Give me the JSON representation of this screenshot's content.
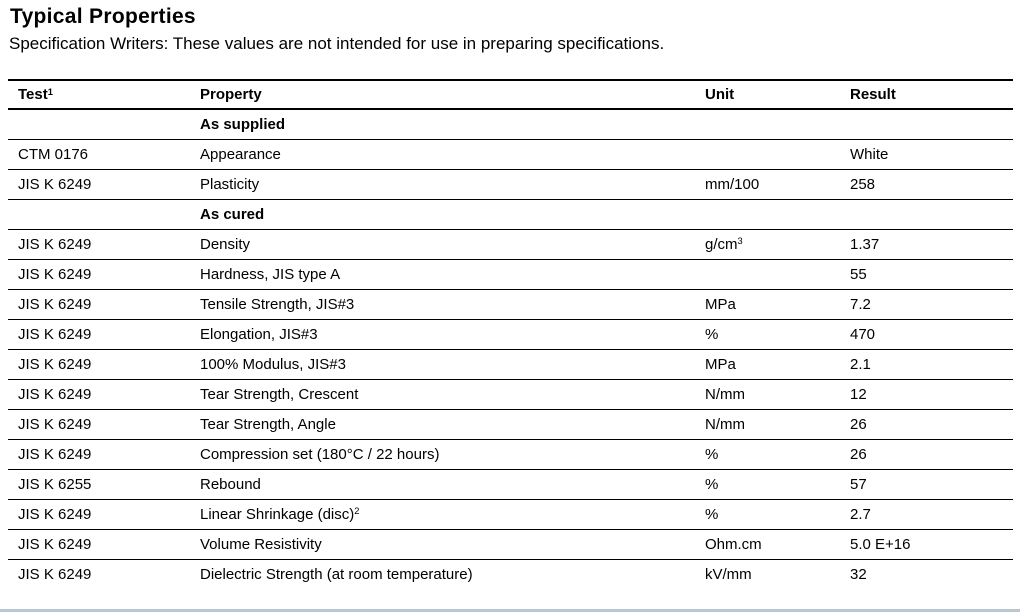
{
  "page": {
    "title": "Typical Properties",
    "subtitle": "Specification Writers: These values are not intended for use in preparing specifications."
  },
  "table": {
    "columns": [
      {
        "key": "test",
        "label": "Test",
        "sup": "1"
      },
      {
        "key": "property",
        "label": "Property",
        "sup": ""
      },
      {
        "key": "unit",
        "label": "Unit",
        "sup": ""
      },
      {
        "key": "result",
        "label": "Result",
        "sup": ""
      }
    ],
    "rows": [
      {
        "type": "section",
        "test": "",
        "property": "As supplied",
        "unit": "",
        "result": ""
      },
      {
        "type": "data",
        "test": "CTM 0176",
        "property": "Appearance",
        "unit": "",
        "result": "White"
      },
      {
        "type": "data",
        "test": "JIS K 6249",
        "property": "Plasticity",
        "unit": "mm/100",
        "result": "258"
      },
      {
        "type": "section",
        "test": "",
        "property": "As cured",
        "unit": "",
        "result": ""
      },
      {
        "type": "data",
        "test": "JIS K 6249",
        "property": "Density",
        "unit": "g/cm",
        "unit_sup": "3",
        "result": "1.37"
      },
      {
        "type": "data",
        "test": "JIS K 6249",
        "property": "Hardness, JIS type A",
        "unit": "",
        "result": "55"
      },
      {
        "type": "data",
        "test": "JIS K 6249",
        "property": "Tensile Strength, JIS#3",
        "unit": "MPa",
        "result": "7.2"
      },
      {
        "type": "data",
        "test": "JIS K 6249",
        "property": "Elongation, JIS#3",
        "unit": "%",
        "result": "470"
      },
      {
        "type": "data",
        "test": "JIS K 6249",
        "property": "100% Modulus, JIS#3",
        "unit": "MPa",
        "result": "2.1"
      },
      {
        "type": "data",
        "test": "JIS K 6249",
        "property": "Tear Strength, Crescent",
        "unit": "N/mm",
        "result": "12"
      },
      {
        "type": "data",
        "test": "JIS K 6249",
        "property": "Tear Strength, Angle",
        "unit": "N/mm",
        "result": "26"
      },
      {
        "type": "data",
        "test": "JIS K 6249",
        "property": "Compression set (180°C / 22 hours)",
        "unit": "%",
        "result": "26"
      },
      {
        "type": "data",
        "test": "JIS K 6255",
        "property": "Rebound",
        "unit": "%",
        "result": "57"
      },
      {
        "type": "data",
        "test": "JIS K 6249",
        "property": "Linear Shrinkage (disc)",
        "property_sup": "2",
        "unit": "%",
        "result": "2.7"
      },
      {
        "type": "data",
        "test": "JIS K 6249",
        "property": "Volume Resistivity",
        "unit": "Ohm.cm",
        "result": "5.0 E+16"
      },
      {
        "type": "data",
        "test": "JIS K 6249",
        "property": "Dielectric Strength (at room temperature)",
        "unit": "kV/mm",
        "result": "32"
      }
    ]
  },
  "colors": {
    "text": "#000000",
    "rule": "#000000",
    "bottom_edge": "#b4c9d8"
  }
}
